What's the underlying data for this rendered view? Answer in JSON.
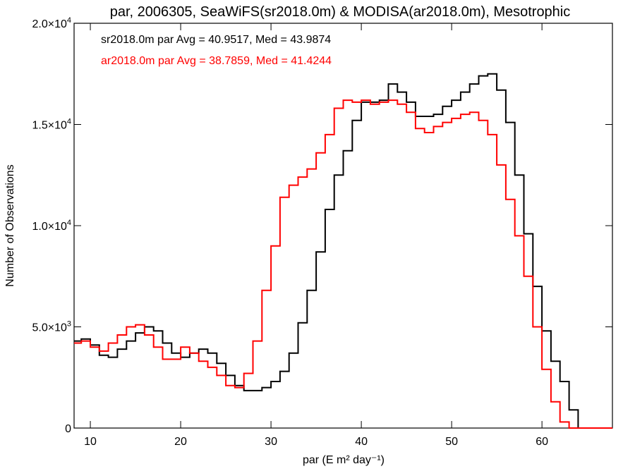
{
  "chart_data": {
    "type": "line",
    "title": "par, 2006305, SeaWiFS(sr2018.0m) & MODISA(ar2018.0m), Mesotrophic",
    "xlabel": "par (E m² day⁻¹)",
    "ylabel": "Number of Observations",
    "xlim": [
      8.2,
      67.8
    ],
    "ylim": [
      0,
      20000
    ],
    "x_ticks": [
      10,
      20,
      30,
      40,
      50,
      60
    ],
    "x_tick_labels": [
      "10",
      "20",
      "30",
      "40",
      "50",
      "60"
    ],
    "y_ticks": [
      0,
      5000,
      10000,
      15000,
      20000
    ],
    "y_tick_labels": [
      {
        "mant": "0",
        "exp": ""
      },
      {
        "mant": "5.0×10",
        "exp": "3"
      },
      {
        "mant": "1.0×10",
        "exp": "4"
      },
      {
        "mant": "1.5×10",
        "exp": "4"
      },
      {
        "mant": "2.0×10",
        "exp": "4"
      }
    ],
    "grid": false,
    "legend": "top-left",
    "series": [
      {
        "name": "sr2018.0m",
        "color": "#000000",
        "stats": "sr2018.0m par Avg = 40.9517, Med = 43.9874",
        "x": [
          8.5,
          9.5,
          10.5,
          11.5,
          12.5,
          13.5,
          14.5,
          15.5,
          16.5,
          17.5,
          18.5,
          19.5,
          20.5,
          21.5,
          22.5,
          23.5,
          24.5,
          25.5,
          26.5,
          27.5,
          28.5,
          29.5,
          30.5,
          31.5,
          32.5,
          33.5,
          34.5,
          35.5,
          36.5,
          37.5,
          38.5,
          39.5,
          40.5,
          41.5,
          42.5,
          43.5,
          44.5,
          45.5,
          46.5,
          47.5,
          48.5,
          49.5,
          50.5,
          51.5,
          52.5,
          53.5,
          54.5,
          55.5,
          56.5,
          57.5,
          58.5,
          59.5,
          60.5,
          61.5,
          62.5,
          63.5,
          64.5,
          65.5,
          66.5,
          67.5
        ],
        "y": [
          4300,
          4400,
          4100,
          3600,
          3500,
          3900,
          4300,
          4700,
          5000,
          4800,
          4200,
          3700,
          3500,
          3700,
          3900,
          3700,
          3200,
          2600,
          2100,
          1850,
          1850,
          2000,
          2300,
          2800,
          3700,
          5200,
          6800,
          8700,
          10800,
          12500,
          13700,
          15200,
          16100,
          16100,
          16200,
          17000,
          16600,
          16100,
          15400,
          15400,
          15500,
          15900,
          16200,
          16600,
          17000,
          17400,
          17500,
          16700,
          15100,
          12500,
          9600,
          7000,
          4800,
          3300,
          2300,
          900,
          0,
          0,
          0,
          0
        ]
      },
      {
        "name": "ar2018.0m",
        "color": "#ff0000",
        "stats": "ar2018.0m par Avg = 38.7859, Med = 41.4244",
        "x": [
          8.5,
          9.5,
          10.5,
          11.5,
          12.5,
          13.5,
          14.5,
          15.5,
          16.5,
          17.5,
          18.5,
          19.5,
          20.5,
          21.5,
          22.5,
          23.5,
          24.5,
          25.5,
          26.5,
          27.5,
          28.5,
          29.5,
          30.5,
          31.5,
          32.5,
          33.5,
          34.5,
          35.5,
          36.5,
          37.5,
          38.5,
          39.5,
          40.5,
          41.5,
          42.5,
          43.5,
          44.5,
          45.5,
          46.5,
          47.5,
          48.5,
          49.5,
          50.5,
          51.5,
          52.5,
          53.5,
          54.5,
          55.5,
          56.5,
          57.5,
          58.5,
          59.5,
          60.5,
          61.5,
          62.5,
          63.5,
          64.5,
          65.5,
          66.5,
          67.5
        ],
        "y": [
          4200,
          4300,
          4000,
          3800,
          4200,
          4600,
          5000,
          5100,
          4600,
          4000,
          3400,
          3400,
          4000,
          3700,
          3300,
          3000,
          2600,
          2100,
          2000,
          2700,
          4300,
          6800,
          9000,
          11400,
          12000,
          12400,
          12800,
          13600,
          14500,
          15800,
          16200,
          16100,
          16200,
          16000,
          16100,
          16200,
          16000,
          15600,
          14800,
          14600,
          14900,
          15100,
          15300,
          15500,
          15600,
          15200,
          14500,
          13000,
          11300,
          9500,
          7500,
          5000,
          2900,
          1300,
          300,
          0,
          0,
          0,
          0,
          0
        ]
      }
    ]
  }
}
